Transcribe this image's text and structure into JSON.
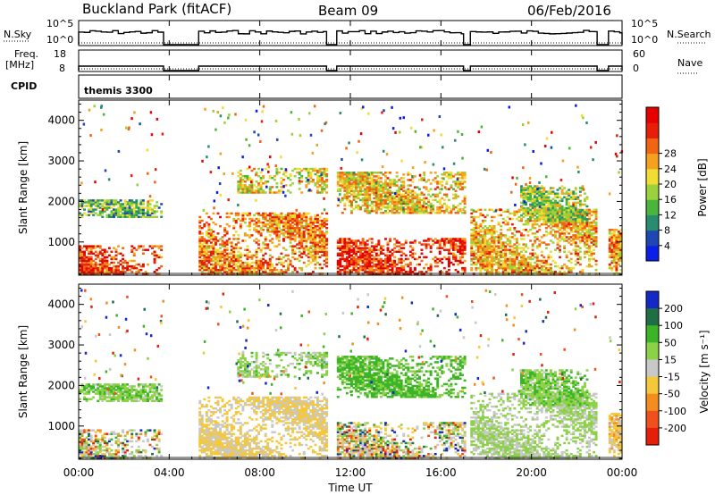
{
  "header": {
    "station": "Buckland Park (fitACF)",
    "beam": "Beam 09",
    "date": "06/Feb/2016"
  },
  "strips": {
    "nsky_label": "N.Sky",
    "nsky_ticks": [
      "10^5",
      "10^0"
    ],
    "nsearch_label": "N.Search",
    "nsearch_ticks": [
      "10^5",
      "10^0"
    ],
    "freq_label": "Freq.",
    "freq_unit": "[MHz]",
    "freq_ticks": [
      "18",
      "8"
    ],
    "nave_label": "Nave",
    "nave_ticks": [
      "60",
      "0"
    ],
    "cpid_label": "CPID",
    "cpid_value": "themis 3300"
  },
  "x_axis": {
    "label": "Time UT",
    "ticks": [
      "00:00",
      "04:00",
      "08:00",
      "12:00",
      "16:00",
      "20:00",
      "00:00"
    ]
  },
  "data_gaps_hours": [
    [
      3.75,
      5.3
    ],
    [
      10.95,
      11.4
    ],
    [
      17.0,
      17.3
    ],
    [
      22.9,
      23.4
    ]
  ],
  "chart_data": [
    {
      "type": "heatmap",
      "panel": "power",
      "title": "Buckland Park (fitACF) Beam 09 06/Feb/2016",
      "xlabel": "Time UT",
      "ylabel": "Slant Range [km]",
      "x_range_hours": [
        0,
        24
      ],
      "y_range_km": [
        180,
        4500
      ],
      "y_ticks": [
        1000,
        2000,
        3000,
        4000
      ],
      "colorbar": {
        "label": "Power [dB]",
        "ticks": [
          4,
          8,
          12,
          16,
          20,
          24,
          28
        ],
        "colors": [
          "#0a1ee6",
          "#1e46b4",
          "#288c6e",
          "#4bb43c",
          "#9bd23c",
          "#f0dc32",
          "#f5a01e",
          "#f06414",
          "#e61e0a",
          "#e60000"
        ]
      },
      "echo_regions": [
        {
          "t0": 0.0,
          "t1": 3.7,
          "r0": 200,
          "r1": 900,
          "value": 26
        },
        {
          "t0": 0.0,
          "t1": 3.7,
          "r0": 1600,
          "r1": 2050,
          "value": 12
        },
        {
          "t0": 5.3,
          "t1": 10.9,
          "r0": 200,
          "r1": 1700,
          "value": 22
        },
        {
          "t0": 7.0,
          "t1": 10.9,
          "r0": 2200,
          "r1": 2800,
          "value": 18
        },
        {
          "t0": 11.4,
          "t1": 17.0,
          "r0": 200,
          "r1": 1100,
          "value": 27
        },
        {
          "t0": 11.4,
          "t1": 17.0,
          "r0": 1700,
          "r1": 2700,
          "value": 19
        },
        {
          "t0": 17.3,
          "t1": 22.9,
          "r0": 200,
          "r1": 1800,
          "value": 20
        },
        {
          "t0": 19.5,
          "t1": 22.5,
          "r0": 1500,
          "r1": 2400,
          "value": 14
        },
        {
          "t0": 23.4,
          "t1": 24.0,
          "r0": 200,
          "r1": 1300,
          "value": 21
        }
      ]
    },
    {
      "type": "heatmap",
      "panel": "velocity",
      "xlabel": "Time UT",
      "ylabel": "Slant Range [km]",
      "x_range_hours": [
        0,
        24
      ],
      "y_range_km": [
        180,
        4500
      ],
      "y_ticks": [
        1000,
        2000,
        3000,
        4000
      ],
      "colorbar": {
        "label": "Velocity [m s⁻¹]",
        "ticks": [
          200,
          100,
          50,
          15,
          -15,
          -50,
          -100,
          -200
        ],
        "colors": [
          "#1428c8",
          "#1e6e46",
          "#3cb428",
          "#8cd246",
          "#c8c8c8",
          "#f5c83c",
          "#f58c1e",
          "#f0501e",
          "#e61e0a"
        ]
      },
      "echo_regions": [
        {
          "t0": 0.0,
          "t1": 3.7,
          "r0": 200,
          "r1": 900,
          "value": 0
        },
        {
          "t0": 0.0,
          "t1": 3.7,
          "r0": 1600,
          "r1": 2050,
          "value": 40
        },
        {
          "t0": 5.3,
          "t1": 10.9,
          "r0": 200,
          "r1": 1700,
          "value": -20
        },
        {
          "t0": 7.0,
          "t1": 10.9,
          "r0": 2200,
          "r1": 2800,
          "value": 30
        },
        {
          "t0": 11.4,
          "t1": 17.0,
          "r0": 200,
          "r1": 1100,
          "value": -10
        },
        {
          "t0": 11.4,
          "t1": 17.0,
          "r0": 1700,
          "r1": 2700,
          "value": 60
        },
        {
          "t0": 17.3,
          "t1": 22.9,
          "r0": 200,
          "r1": 1800,
          "value": 20
        },
        {
          "t0": 19.5,
          "t1": 22.5,
          "r0": 1500,
          "r1": 2400,
          "value": 40
        },
        {
          "t0": 23.4,
          "t1": 24.0,
          "r0": 200,
          "r1": 1300,
          "value": -30
        }
      ]
    }
  ]
}
